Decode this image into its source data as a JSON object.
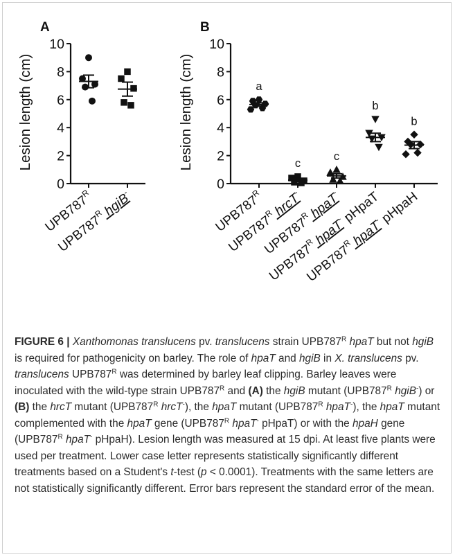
{
  "panels": [
    {
      "label": "A",
      "ylabel": "Lesion length (cm)"
    },
    {
      "label": "B",
      "ylabel": "Lesion length (cm)"
    }
  ],
  "chart_data": [
    {
      "type": "scatter",
      "panel": "A",
      "ylabel": "Lesion length (cm)",
      "ylim": [
        0,
        10
      ],
      "yticks": [
        0,
        2,
        4,
        6,
        8,
        10
      ],
      "categories": [
        "UPB787R",
        "UPB787R hgiB-"
      ],
      "groups": [
        {
          "category": "UPB787R",
          "marker": "circle",
          "points": [
            9.0,
            7.5,
            7.1,
            6.9,
            5.9
          ],
          "mean": 7.3,
          "sem": 0.45,
          "letter": ""
        },
        {
          "category": "UPB787R hgiB-",
          "marker": "square",
          "points": [
            8.0,
            7.5,
            6.8,
            5.8,
            5.6
          ],
          "mean": 6.75,
          "sem": 0.5,
          "letter": ""
        }
      ]
    },
    {
      "type": "scatter",
      "panel": "B",
      "ylabel": "Lesion length (cm)",
      "ylim": [
        0,
        10
      ],
      "yticks": [
        0,
        2,
        4,
        6,
        8,
        10
      ],
      "categories": [
        "UPB787R",
        "UPB787R hrcT-",
        "UPB787R hpaT-",
        "UPB787R hpaT- pHpaT",
        "UPB787R hpaT- pHpaH"
      ],
      "groups": [
        {
          "category": "UPB787R",
          "marker": "hexagon",
          "points": [
            6.0,
            5.9,
            5.7,
            5.6,
            5.4,
            5.3
          ],
          "mean": 5.65,
          "sem": 0.12,
          "letter": "a"
        },
        {
          "category": "UPB787R hrcT-",
          "marker": "square",
          "points": [
            0.5,
            0.4,
            0.2,
            0.1,
            0.05
          ],
          "mean": 0.25,
          "sem": 0.1,
          "letter": "c"
        },
        {
          "category": "UPB787R hpaT-",
          "marker": "triangle-up",
          "points": [
            1.0,
            0.8,
            0.5,
            0.3,
            0.2
          ],
          "mean": 0.55,
          "sem": 0.15,
          "letter": "c"
        },
        {
          "category": "UPB787R hpaT- pHpaT",
          "marker": "triangle-down",
          "points": [
            4.6,
            3.6,
            3.3,
            3.2,
            2.6
          ],
          "mean": 3.3,
          "sem": 0.3,
          "letter": "b"
        },
        {
          "category": "UPB787R hpaT- pHpaH",
          "marker": "diamond",
          "points": [
            3.5,
            3.0,
            2.8,
            2.8,
            2.2,
            2.1
          ],
          "mean": 2.75,
          "sem": 0.25,
          "letter": "b"
        }
      ]
    }
  ],
  "caption": {
    "figure_label": "FIGURE 6 | ",
    "parts": [
      [
        "i",
        "Xanthomonas translucens"
      ],
      [
        "t",
        " pv. "
      ],
      [
        "i",
        "translucens"
      ],
      [
        "t",
        " strain UPB787"
      ],
      [
        "s",
        "R"
      ],
      [
        "t",
        " "
      ],
      [
        "i",
        "hpaT"
      ],
      [
        "t",
        " but not "
      ],
      [
        "i",
        "hgiB"
      ],
      [
        "t",
        " is required for pathogenicity on barley. The role of "
      ],
      [
        "i",
        "hpaT"
      ],
      [
        "t",
        " and "
      ],
      [
        "i",
        "hgiB"
      ],
      [
        "t",
        " in "
      ],
      [
        "i",
        "X. translucens"
      ],
      [
        "t",
        " pv. "
      ],
      [
        "i",
        "translucens"
      ],
      [
        "t",
        " UPB787"
      ],
      [
        "s",
        "R"
      ],
      [
        "t",
        " was determined by barley leaf clipping. Barley leaves were inoculated with the wild-type strain UPB787"
      ],
      [
        "s",
        "R"
      ],
      [
        "t",
        " and "
      ],
      [
        "b",
        "(A)"
      ],
      [
        "t",
        " the "
      ],
      [
        "i",
        "hgiB"
      ],
      [
        "t",
        " mutant (UPB787"
      ],
      [
        "s",
        "R"
      ],
      [
        "t",
        " "
      ],
      [
        "i",
        "hgiB"
      ],
      [
        "s",
        "-"
      ],
      [
        "t",
        ") or "
      ],
      [
        "b",
        "(B)"
      ],
      [
        "t",
        " the "
      ],
      [
        "i",
        "hrcT"
      ],
      [
        "t",
        " mutant (UPB787"
      ],
      [
        "s",
        "R"
      ],
      [
        "t",
        " "
      ],
      [
        "i",
        "hrcT"
      ],
      [
        "s",
        "-"
      ],
      [
        "t",
        "), the "
      ],
      [
        "i",
        "hpaT"
      ],
      [
        "t",
        " mutant (UPB787"
      ],
      [
        "s",
        "R"
      ],
      [
        "t",
        " "
      ],
      [
        "i",
        "hpaT"
      ],
      [
        "s",
        "-"
      ],
      [
        "t",
        "), the "
      ],
      [
        "i",
        "hpaT"
      ],
      [
        "t",
        " mutant complemented with the "
      ],
      [
        "i",
        "hpaT"
      ],
      [
        "t",
        " gene (UPB787"
      ],
      [
        "s",
        "R"
      ],
      [
        "t",
        " "
      ],
      [
        "i",
        "hpaT"
      ],
      [
        "s",
        "-"
      ],
      [
        "t",
        " pHpaT) or with the "
      ],
      [
        "i",
        "hpaH"
      ],
      [
        "t",
        " gene (UPB787"
      ],
      [
        "s",
        "R"
      ],
      [
        "t",
        " "
      ],
      [
        "i",
        "hpaT"
      ],
      [
        "s",
        "-"
      ],
      [
        "t",
        " pHpaH). Lesion length was measured at 15 dpi. At least five plants were used per treatment. Lower case letter represents statistically significantly different treatments based on a Student's "
      ],
      [
        "i",
        "t"
      ],
      [
        "t",
        "-test ("
      ],
      [
        "i",
        "p"
      ],
      [
        "t",
        " < 0.0001). Treatments with the same letters are not statistically significantly different. Error bars represent the standard error of the mean."
      ]
    ]
  }
}
